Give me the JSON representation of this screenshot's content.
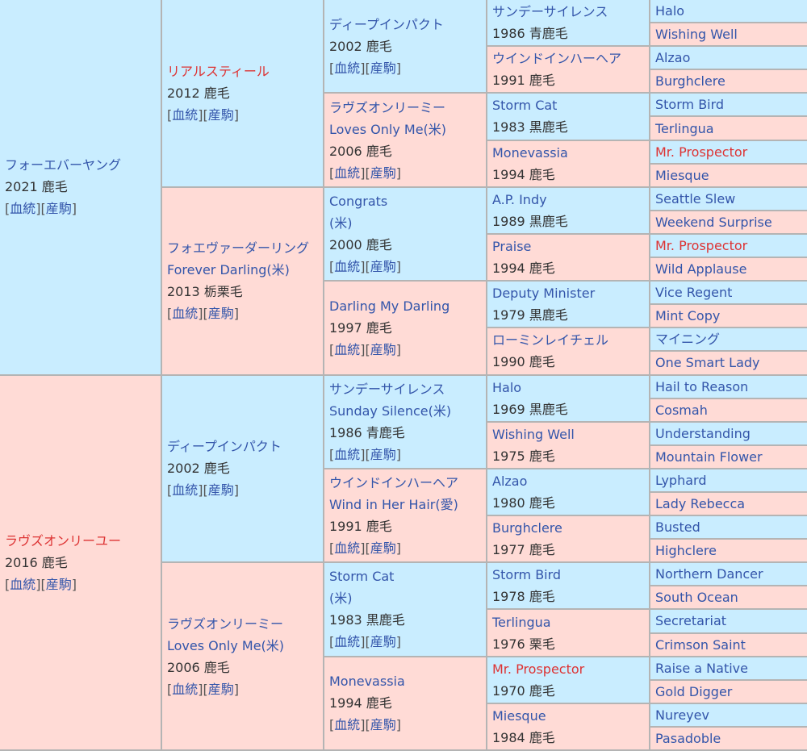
{
  "colors": {
    "sire_bg": "#c9edff",
    "dam_bg": "#ffdbd6",
    "link": "#3355aa",
    "highlight": "#dd3333",
    "border": "#b4b4b4"
  },
  "link_labels": [
    "血統",
    "産駒"
  ],
  "generations": [
    [
      {
        "name": "フォーエバーヤング",
        "year_color": "2021 鹿毛"
      },
      {
        "name": "ラヴズオンリーユー",
        "year_color": "2016 鹿毛",
        "red": true
      }
    ],
    [
      {
        "name": "リアルスティール",
        "year_color": "2012 鹿毛",
        "red": true
      },
      {
        "name": "フォエヴァーダーリング",
        "alt": "Forever Darling(米)",
        "year_color": "2013 栃栗毛"
      },
      {
        "name": "ディープインパクト",
        "year_color": "2002 鹿毛"
      },
      {
        "name": "ラヴズオンリーミー",
        "alt": "Loves Only Me(米)",
        "year_color": "2006 鹿毛"
      }
    ],
    [
      {
        "name": "ディープインパクト",
        "year_color": "2002 鹿毛"
      },
      {
        "name": "ラヴズオンリーミー",
        "alt": "Loves Only Me(米)",
        "year_color": "2006 鹿毛"
      },
      {
        "name": "Congrats",
        "alt": "(米)",
        "year_color": "2000 鹿毛"
      },
      {
        "name": "Darling My Darling",
        "year_color": "1997 鹿毛"
      },
      {
        "name": "サンデーサイレンス",
        "alt": "Sunday Silence(米)",
        "year_color": "1986 青鹿毛"
      },
      {
        "name": "ウインドインハーヘア",
        "alt": "Wind in Her Hair(愛)",
        "year_color": "1991 鹿毛"
      },
      {
        "name": "Storm Cat",
        "alt": "(米)",
        "year_color": "1983 黒鹿毛"
      },
      {
        "name": "Monevassia",
        "year_color": "1994 鹿毛"
      }
    ],
    [
      {
        "name": "サンデーサイレンス",
        "year_color": "1986 青鹿毛"
      },
      {
        "name": "ウインドインハーヘア",
        "year_color": "1991 鹿毛"
      },
      {
        "name": "Storm Cat",
        "year_color": "1983 黒鹿毛"
      },
      {
        "name": "Monevassia",
        "year_color": "1994 鹿毛"
      },
      {
        "name": "A.P. Indy",
        "year_color": "1989 黒鹿毛"
      },
      {
        "name": "Praise",
        "year_color": "1994 鹿毛"
      },
      {
        "name": "Deputy Minister",
        "year_color": "1979 黒鹿毛"
      },
      {
        "name": "ローミンレイチェル",
        "year_color": "1990 鹿毛"
      },
      {
        "name": "Halo",
        "year_color": "1969 黒鹿毛"
      },
      {
        "name": "Wishing Well",
        "year_color": "1975 鹿毛"
      },
      {
        "name": "Alzao",
        "year_color": "1980 鹿毛"
      },
      {
        "name": "Burghclere",
        "year_color": "1977 鹿毛"
      },
      {
        "name": "Storm Bird",
        "year_color": "1978 鹿毛"
      },
      {
        "name": "Terlingua",
        "year_color": "1976 栗毛"
      },
      {
        "name": "Mr. Prospector",
        "year_color": "1970 鹿毛",
        "red": true
      },
      {
        "name": "Miesque",
        "year_color": "1984 鹿毛"
      }
    ],
    [
      {
        "name": "Halo"
      },
      {
        "name": "Wishing Well"
      },
      {
        "name": "Alzao"
      },
      {
        "name": "Burghclere"
      },
      {
        "name": "Storm Bird"
      },
      {
        "name": "Terlingua"
      },
      {
        "name": "Mr. Prospector",
        "red": true
      },
      {
        "name": "Miesque"
      },
      {
        "name": "Seattle Slew"
      },
      {
        "name": "Weekend Surprise"
      },
      {
        "name": "Mr. Prospector",
        "red": true
      },
      {
        "name": "Wild Applause"
      },
      {
        "name": "Vice Regent"
      },
      {
        "name": "Mint Copy"
      },
      {
        "name": "マイニング"
      },
      {
        "name": "One Smart Lady"
      },
      {
        "name": "Hail to Reason"
      },
      {
        "name": "Cosmah"
      },
      {
        "name": "Understanding"
      },
      {
        "name": "Mountain Flower"
      },
      {
        "name": "Lyphard"
      },
      {
        "name": "Lady Rebecca"
      },
      {
        "name": "Busted"
      },
      {
        "name": "Highclere"
      },
      {
        "name": "Northern Dancer"
      },
      {
        "name": "South Ocean"
      },
      {
        "name": "Secretariat"
      },
      {
        "name": "Crimson Saint"
      },
      {
        "name": "Raise a Native"
      },
      {
        "name": "Gold Digger"
      },
      {
        "name": "Nureyev"
      },
      {
        "name": "Pasadoble"
      }
    ]
  ]
}
